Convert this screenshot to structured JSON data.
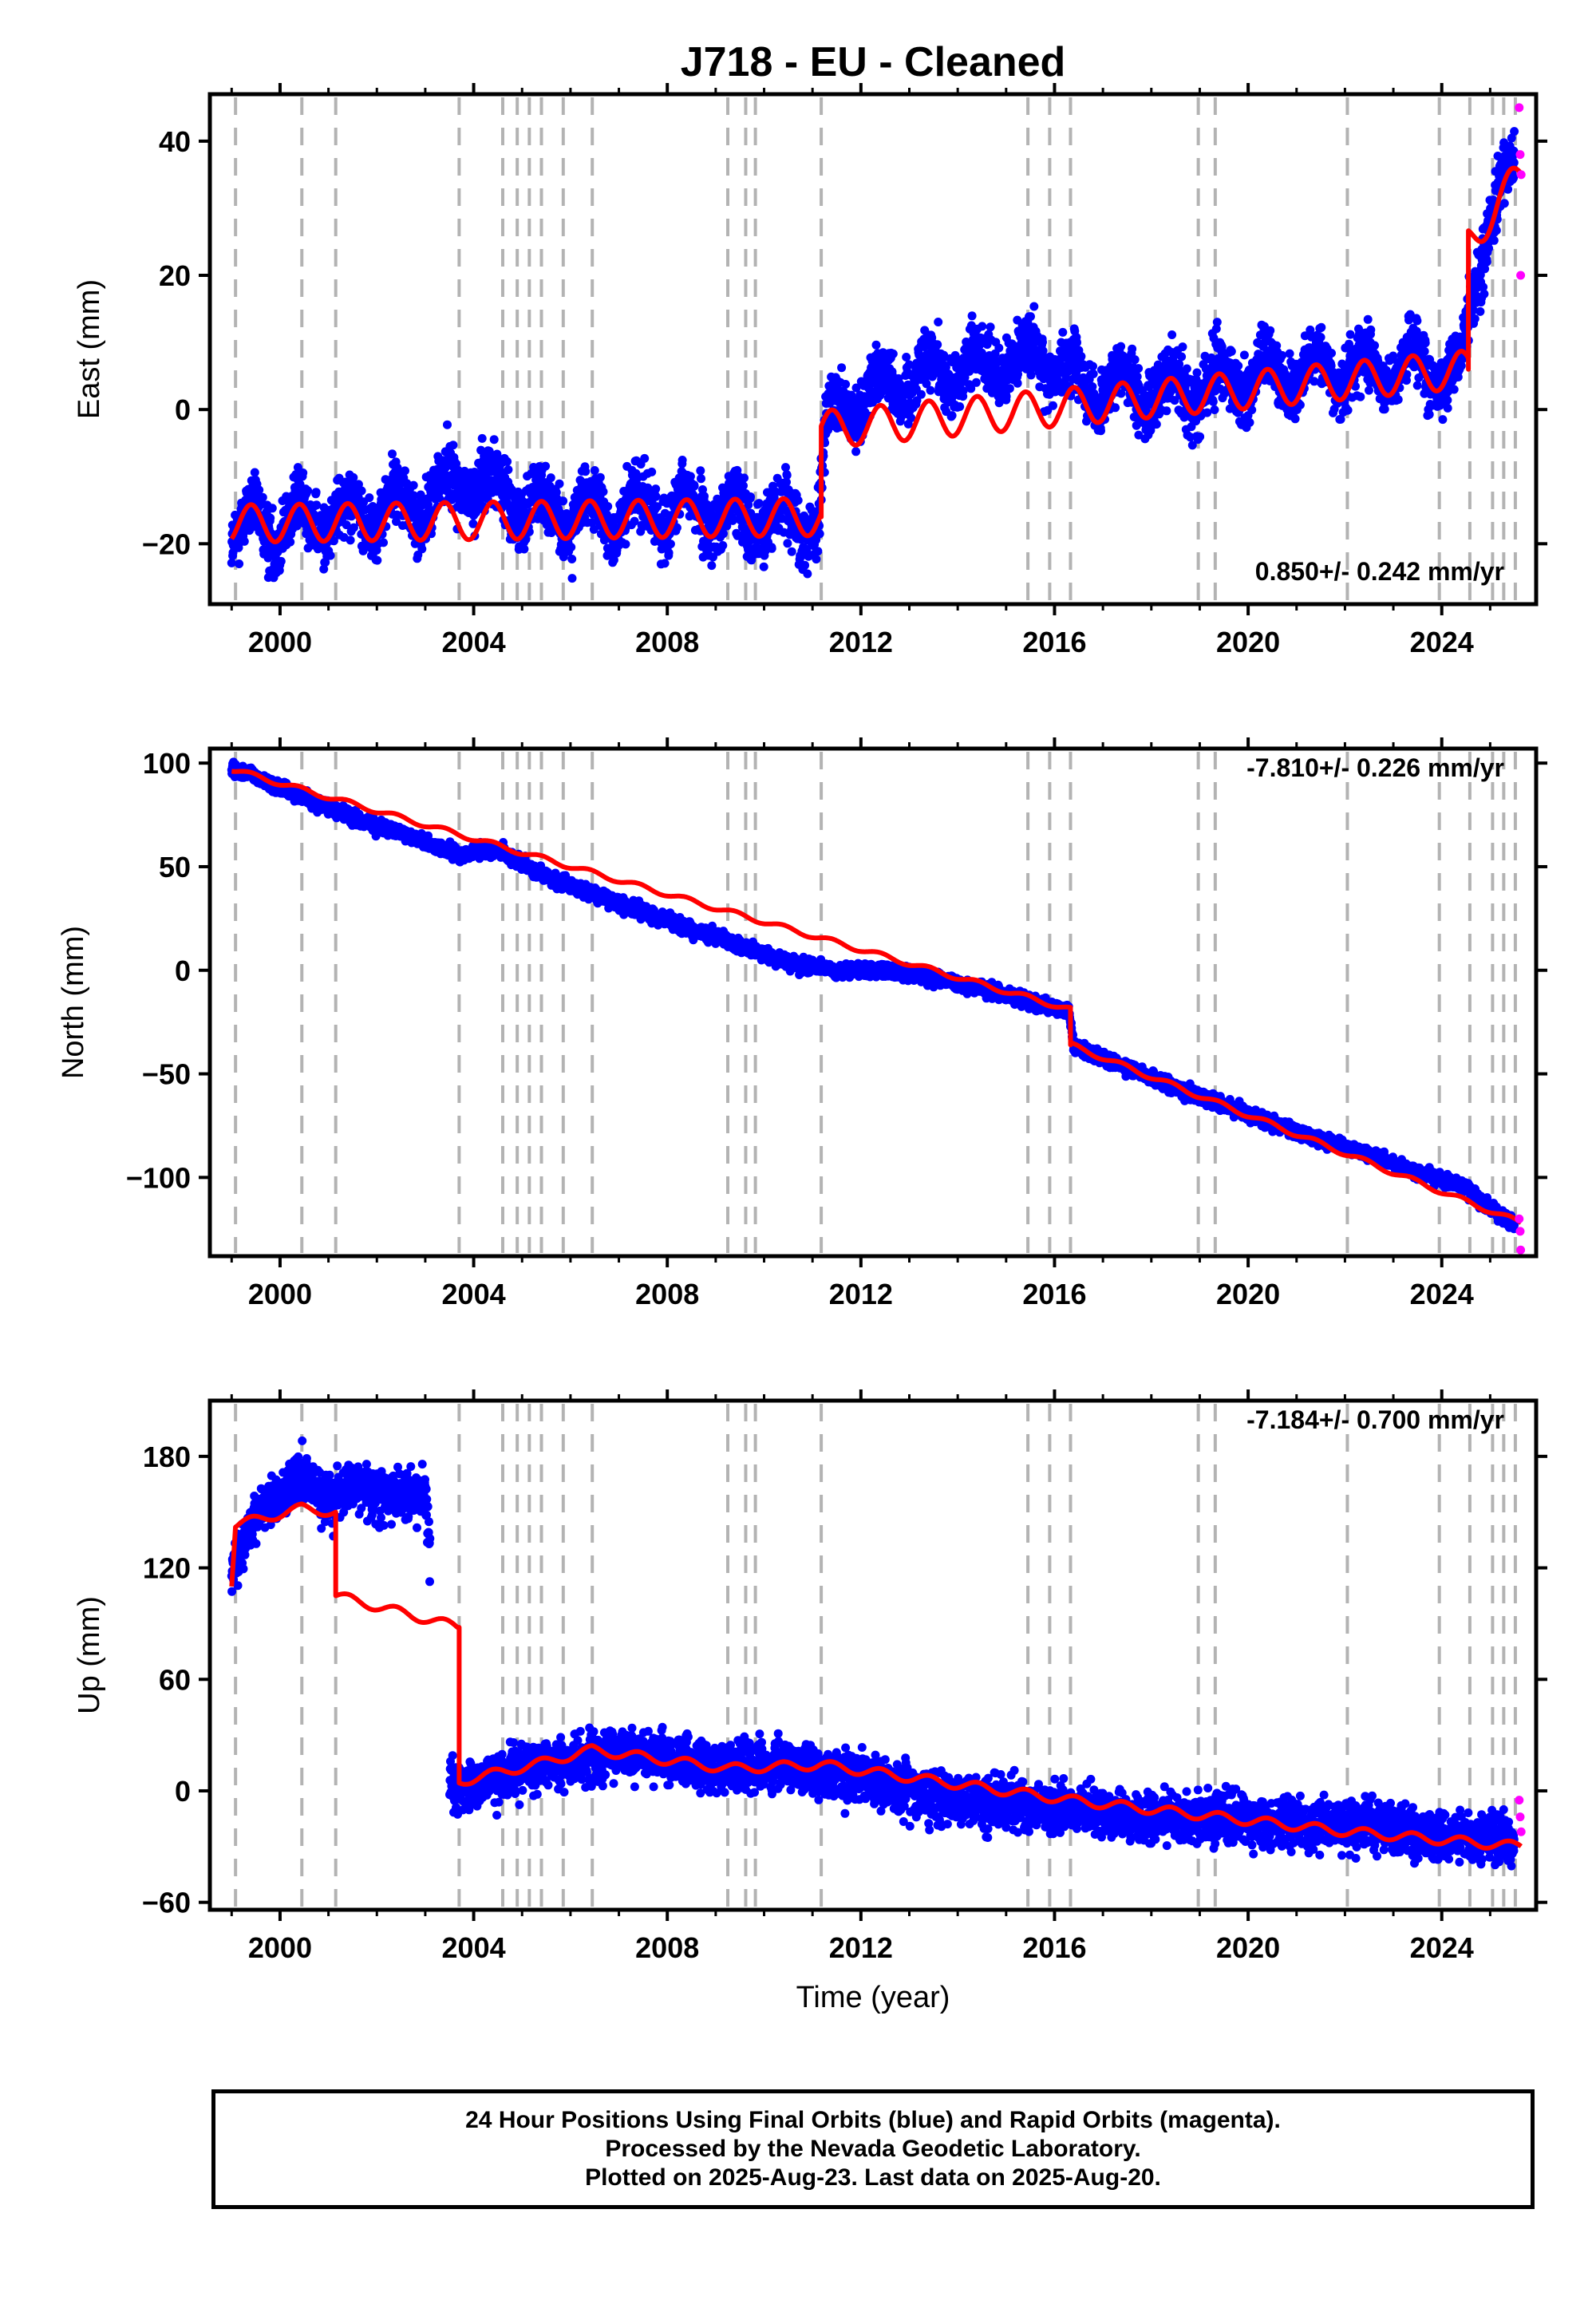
{
  "title": "J718  - EU - Cleaned",
  "xlabel": "Time (year)",
  "colors": {
    "final": "#0000ff",
    "rapid": "#ff00ff",
    "model": "#ff0000",
    "breaks": "#b3b3b3"
  },
  "xrange": [
    1998.55,
    2025.95
  ],
  "xticks": [
    "2000",
    "2004",
    "2008",
    "2012",
    "2016",
    "2020",
    "2024"
  ],
  "breaks": [
    1999.08,
    2000.45,
    2001.15,
    2003.7,
    2004.6,
    2004.9,
    2005.15,
    2005.4,
    2005.85,
    2006.45,
    2009.25,
    2009.62,
    2009.82,
    2011.18,
    2015.45,
    2015.9,
    2016.33,
    2018.97,
    2019.32,
    2022.05,
    2023.95,
    2024.58,
    2025.05,
    2025.28,
    2025.52
  ],
  "footer": {
    "line1": "24 Hour Positions Using Final Orbits (blue) and Rapid Orbits (magenta).",
    "line2": "Processed by the Nevada Geodetic Laboratory.",
    "line3": "Plotted on 2025-Aug-23. Last data on 2025-Aug-20."
  },
  "chart_data": [
    {
      "type": "scatter",
      "ylabel": "East (mm)",
      "ylim": [
        -29,
        47
      ],
      "yticks": [
        "−20",
        "0",
        "20",
        "40"
      ],
      "rate": "0.850+/- 0.242 mm/yr",
      "series": [
        {
          "name": "Final Orbits (blue)",
          "x": [
            1999.0,
            2000.0,
            2001.0,
            2002.0,
            2003.0,
            2003.8,
            2004.5,
            2005.5,
            2006.5,
            2007.5,
            2008.5,
            2009.5,
            2010.5,
            2011.1,
            2011.3,
            2012.0,
            2013.0,
            2014.0,
            2015.0,
            2015.9,
            2016.5,
            2017.5,
            2018.5,
            2019.5,
            2020.5,
            2021.5,
            2022.5,
            2023.5,
            2024.4,
            2024.7,
            2025.0,
            2025.5
          ],
          "y": [
            -18,
            -17,
            -16,
            -15,
            -14,
            -10,
            -12,
            -15,
            -16,
            -15,
            -15,
            -16,
            -16,
            -16,
            -3,
            2,
            5,
            6,
            7,
            8,
            4,
            3,
            3,
            4,
            5,
            6,
            6,
            7,
            5,
            20,
            30,
            35
          ]
        },
        {
          "name": "Rapid Orbits (magenta)",
          "x": [
            2025.6,
            2025.62,
            2025.63,
            2025.64
          ],
          "y": [
            45,
            38,
            20,
            35
          ]
        },
        {
          "name": "Model",
          "x": [
            1999.0,
            2011.18,
            2011.18,
            2024.55,
            2024.55,
            2025.64
          ],
          "y": [
            -17,
            -16,
            -3,
            6,
            25,
            35
          ]
        }
      ]
    },
    {
      "type": "scatter",
      "ylabel": "North (mm)",
      "ylim": [
        -138,
        107
      ],
      "yticks": [
        "100",
        "50",
        "0",
        "−50",
        "−100"
      ],
      "rate": "-7.810+/- 0.226 mm/yr",
      "series": [
        {
          "name": "Final Orbits (blue)",
          "x": [
            1999.0,
            2000.0,
            2001.0,
            2002.0,
            2003.0,
            2003.7,
            2004.5,
            2005.5,
            2006.5,
            2007.5,
            2008.5,
            2009.5,
            2010.5,
            2011.5,
            2012.5,
            2013.5,
            2014.5,
            2015.5,
            2016.3,
            2016.4,
            2017.5,
            2018.5,
            2019.5,
            2020.5,
            2021.5,
            2022.5,
            2023.5,
            2024.5,
            2025.5
          ],
          "y": [
            98,
            88,
            78,
            70,
            62,
            56,
            58,
            45,
            37,
            28,
            20,
            12,
            4,
            0,
            0,
            -4,
            -9,
            -15,
            -20,
            -37,
            -47,
            -57,
            -65,
            -74,
            -82,
            -89,
            -97,
            -105,
            -123
          ]
        },
        {
          "name": "Rapid Orbits (magenta)",
          "x": [
            2025.6,
            2025.62,
            2025.63
          ],
          "y": [
            -120,
            -126,
            -135
          ]
        },
        {
          "name": "Model",
          "x": [
            1999.0,
            2016.33,
            2016.33,
            2025.64
          ],
          "y": [
            97,
            -19,
            -36,
            -122
          ]
        }
      ]
    },
    {
      "type": "scatter",
      "ylabel": "Up (mm)",
      "ylim": [
        -64,
        210
      ],
      "yticks": [
        "180",
        "120",
        "60",
        "0",
        "−60"
      ],
      "rate": "-7.184+/- 0.700 mm/yr",
      "series": [
        {
          "name": "Final Orbits (blue)",
          "x": [
            1999.0,
            1999.5,
            2000.0,
            2000.5,
            2001.0,
            2001.5,
            2002.0,
            2002.5,
            2003.0,
            2003.5,
            2004.0,
            2005.0,
            2006.0,
            2007.0,
            2008.0,
            2009.0,
            2010.0,
            2011.0,
            2012.0,
            2013.0,
            2014.0,
            2015.0,
            2016.0,
            2017.0,
            2018.0,
            2019.0,
            2020.0,
            2021.0,
            2022.0,
            2023.0,
            2024.0,
            2025.0,
            2025.5
          ],
          "y": [
            115,
            150,
            160,
            170,
            155,
            165,
            160,
            158,
            160,
            5,
            3,
            12,
            16,
            20,
            17,
            13,
            15,
            10,
            8,
            0,
            -5,
            -7,
            -10,
            -12,
            -15,
            -13,
            -16,
            -18,
            -19,
            -20,
            -24,
            -25,
            -28
          ]
        },
        {
          "name": "Rapid Orbits (magenta)",
          "x": [
            2025.6,
            2025.62,
            2025.64
          ],
          "y": [
            -5,
            -14,
            -22
          ]
        },
        {
          "name": "Model",
          "x": [
            1999.0,
            1999.08,
            2000.45,
            2001.15,
            2001.15,
            2003.7,
            2003.7,
            2005.4,
            2006.45,
            2009.25,
            2011.18,
            2016.33,
            2022.05,
            2025.64
          ],
          "y": [
            112,
            143,
            152,
            150,
            105,
            88,
            5,
            15,
            22,
            12,
            14,
            -5,
            -22,
            -30
          ]
        }
      ]
    }
  ]
}
